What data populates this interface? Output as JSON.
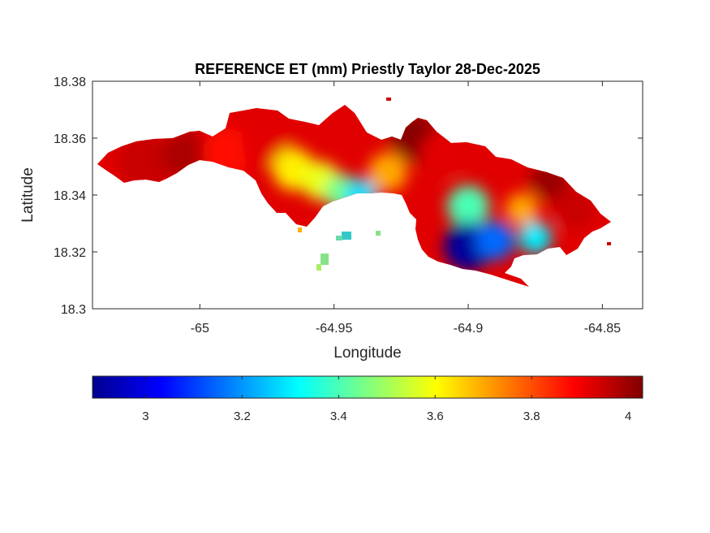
{
  "figure": {
    "title": "REFERENCE ET (mm) Priestly Taylor 28-Dec-2025",
    "xlabel": "Longitude",
    "ylabel": "Latitude"
  },
  "axes": {
    "x_ticks": [
      {
        "value": -65,
        "label": "-65"
      },
      {
        "value": -64.95,
        "label": "-64.95"
      },
      {
        "value": -64.9,
        "label": "-64.9"
      },
      {
        "value": -64.85,
        "label": "-64.85"
      }
    ],
    "y_ticks": [
      {
        "value": 18.3,
        "label": "18.3"
      },
      {
        "value": 18.32,
        "label": "18.32"
      },
      {
        "value": 18.34,
        "label": "18.34"
      },
      {
        "value": 18.36,
        "label": "18.36"
      },
      {
        "value": 18.38,
        "label": "18.38"
      }
    ],
    "xlim": [
      -65.04,
      -64.835
    ],
    "ylim": [
      18.3,
      18.38
    ]
  },
  "colorbar": {
    "colormap": "jet",
    "orientation": "horizontal",
    "location": "below",
    "range": [
      2.89,
      4.03
    ],
    "ticks": [
      {
        "value": 3,
        "label": "3"
      },
      {
        "value": 3.2,
        "label": "3.2"
      },
      {
        "value": 3.4,
        "label": "3.4"
      },
      {
        "value": 3.6,
        "label": "3.6"
      },
      {
        "value": 3.8,
        "label": "3.8"
      },
      {
        "value": 4,
        "label": "4"
      }
    ]
  },
  "chart_data": {
    "type": "heatmap",
    "title": "REFERENCE ET (mm) Priestly Taylor 28-Dec-2025",
    "xlabel": "Longitude",
    "ylabel": "Latitude",
    "xlim": [
      -65.04,
      -64.835
    ],
    "ylim": [
      18.3,
      18.38
    ],
    "value_unit": "mm",
    "value_range": [
      2.89,
      4.03
    ],
    "grid": false,
    "colormap": "jet",
    "regions": [
      {
        "lon": -65.02,
        "lat": 18.352,
        "value": 3.95
      },
      {
        "lon": -65.005,
        "lat": 18.354,
        "value": 3.98
      },
      {
        "lon": -64.99,
        "lat": 18.355,
        "value": 3.88
      },
      {
        "lon": -64.975,
        "lat": 18.358,
        "value": 3.92
      },
      {
        "lon": -64.965,
        "lat": 18.349,
        "value": 3.62
      },
      {
        "lon": -64.955,
        "lat": 18.345,
        "value": 3.58
      },
      {
        "lon": -64.947,
        "lat": 18.341,
        "value": 3.45
      },
      {
        "lon": -64.94,
        "lat": 18.34,
        "value": 3.28
      },
      {
        "lon": -64.93,
        "lat": 18.348,
        "value": 3.7
      },
      {
        "lon": -64.92,
        "lat": 18.36,
        "value": 4.02
      },
      {
        "lon": -64.91,
        "lat": 18.355,
        "value": 3.92
      },
      {
        "lon": -64.9,
        "lat": 18.336,
        "value": 3.4
      },
      {
        "lon": -64.9,
        "lat": 18.322,
        "value": 2.92
      },
      {
        "lon": -64.89,
        "lat": 18.324,
        "value": 3.15
      },
      {
        "lon": -64.88,
        "lat": 18.335,
        "value": 3.7
      },
      {
        "lon": -64.875,
        "lat": 18.325,
        "value": 3.3
      },
      {
        "lon": -64.87,
        "lat": 18.345,
        "value": 4.0
      },
      {
        "lon": -64.86,
        "lat": 18.335,
        "value": 3.95
      }
    ]
  }
}
